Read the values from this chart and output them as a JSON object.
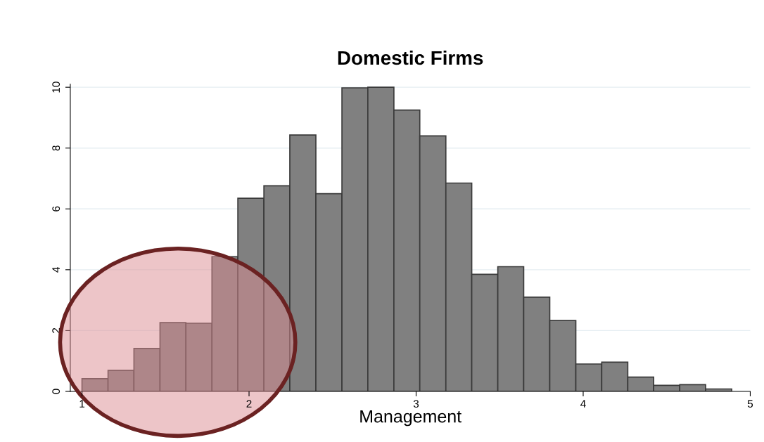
{
  "chart_data": {
    "type": "histogram",
    "title": "Domestic Firms",
    "xlabel": "Management",
    "bins": [
      1.0,
      1.156,
      1.311,
      1.467,
      1.622,
      1.778,
      1.933,
      2.089,
      2.244,
      2.4,
      2.556,
      2.711,
      2.867,
      3.022,
      3.178,
      3.333,
      3.489,
      3.644,
      3.8,
      3.956,
      4.111,
      4.267,
      4.422,
      4.578,
      4.733,
      4.889
    ],
    "values": [
      0.42,
      0.69,
      1.41,
      2.26,
      2.24,
      4.43,
      6.35,
      6.76,
      8.43,
      6.5,
      9.98,
      10.0,
      9.25,
      8.4,
      6.85,
      3.85,
      4.1,
      3.1,
      2.33,
      0.9,
      0.96,
      0.47,
      0.2,
      0.22,
      0.08
    ],
    "color": "#808080",
    "xlim": [
      0.93,
      5
    ],
    "xticks": [
      1,
      2,
      3,
      4,
      5
    ],
    "ylim": [
      0,
      10.1
    ],
    "yticks": [
      0,
      2,
      4,
      6,
      8,
      10
    ],
    "grid": "y"
  }
}
